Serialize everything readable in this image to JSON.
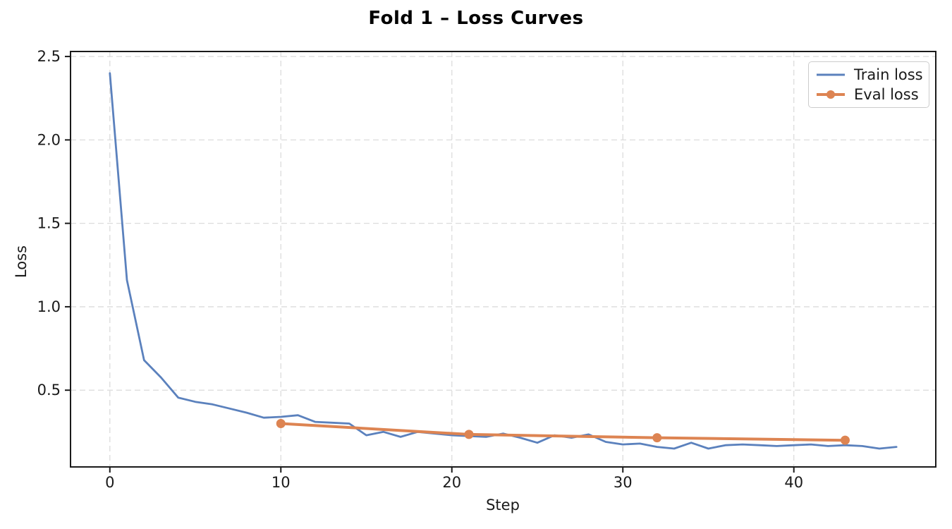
{
  "chart_data": {
    "type": "line",
    "title": "Fold 1 – Loss Curves",
    "xlabel": "Step",
    "ylabel": "Loss",
    "xlim": [
      -2.3,
      48.3
    ],
    "ylim": [
      0.04,
      2.53
    ],
    "xticks": [
      {
        "v": 0,
        "label": "0"
      },
      {
        "v": 10,
        "label": "10"
      },
      {
        "v": 20,
        "label": "20"
      },
      {
        "v": 30,
        "label": "30"
      },
      {
        "v": 40,
        "label": "40"
      }
    ],
    "yticks": [
      {
        "v": 0.5,
        "label": "0.5"
      },
      {
        "v": 1.0,
        "label": "1.0"
      },
      {
        "v": 1.5,
        "label": "1.5"
      },
      {
        "v": 2.0,
        "label": "2.0"
      },
      {
        "v": 2.5,
        "label": "2.5"
      }
    ],
    "grid": {
      "on": true,
      "style": "dashed",
      "color": "#dcdcdc"
    },
    "legend": {
      "position": "upper right"
    },
    "colors": {
      "train": "#5b81bd",
      "eval": "#dd8452",
      "spine": "#1a1a1a",
      "text": "#1a1a1a",
      "background": "#ffffff"
    },
    "series": [
      {
        "name": "Train loss",
        "color": "#5b81bd",
        "marker": "none",
        "line_width": 2.8,
        "x": [
          0,
          1,
          2,
          3,
          4,
          5,
          6,
          7,
          8,
          9,
          10,
          11,
          12,
          13,
          14,
          15,
          16,
          17,
          18,
          19,
          20,
          21,
          22,
          23,
          24,
          25,
          26,
          27,
          28,
          29,
          30,
          31,
          32,
          33,
          34,
          35,
          36,
          37,
          38,
          39,
          40,
          41,
          42,
          43,
          44,
          45,
          46
        ],
        "values": [
          2.4,
          1.16,
          0.68,
          0.575,
          0.455,
          0.43,
          0.415,
          0.39,
          0.365,
          0.335,
          0.34,
          0.35,
          0.31,
          0.305,
          0.3,
          0.23,
          0.25,
          0.22,
          0.25,
          0.24,
          0.23,
          0.225,
          0.22,
          0.24,
          0.215,
          0.185,
          0.23,
          0.215,
          0.235,
          0.19,
          0.175,
          0.18,
          0.16,
          0.15,
          0.185,
          0.15,
          0.17,
          0.175,
          0.17,
          0.165,
          0.17,
          0.175,
          0.165,
          0.17,
          0.165,
          0.15,
          0.16
        ]
      },
      {
        "name": "Eval loss",
        "color": "#dd8452",
        "marker": "circle",
        "marker_size": 6.5,
        "line_width": 4,
        "x": [
          10,
          21,
          32,
          43
        ],
        "values": [
          0.3,
          0.235,
          0.215,
          0.2
        ]
      }
    ]
  },
  "layout_text": {
    "legend_train": "Train loss",
    "legend_eval": "Eval loss"
  }
}
